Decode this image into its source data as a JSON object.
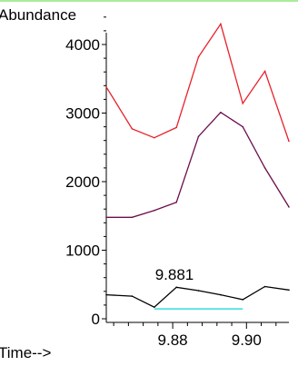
{
  "chart_data": {
    "type": "line",
    "ylabel": "Abundance",
    "xlabel": "Time-->",
    "y_ticks": [
      "0",
      "1000",
      "2000",
      "3000",
      "4000"
    ],
    "x_ticks": [
      "9.88",
      "9.90"
    ],
    "y_tick_values": [
      0,
      1000,
      2000,
      3000,
      4000
    ],
    "x_tick_values": [
      9.88,
      9.9
    ],
    "ylim": [
      -50,
      4500
    ],
    "xlim": [
      9.862,
      9.9115
    ],
    "x": [
      9.862,
      9.869,
      9.875,
      9.881,
      9.887,
      9.893,
      9.899,
      9.905,
      9.9115
    ],
    "series": [
      {
        "color": "#e8202a",
        "values": [
          3380,
          2770,
          2640,
          2790,
          3820,
          4300,
          3140,
          3610,
          2590
        ]
      },
      {
        "color": "#6b0f4b",
        "values": [
          1480,
          1480,
          1580,
          1700,
          2660,
          3010,
          2800,
          2200,
          1630
        ]
      },
      {
        "color": "#000000",
        "values": [
          350,
          330,
          170,
          460,
          410,
          350,
          280,
          470,
          420
        ]
      }
    ],
    "annotation": {
      "text": "9.881",
      "baseline_color": "#33dde0",
      "baseline_from": 9.875,
      "baseline_to": 9.899,
      "baseline_y": 170
    },
    "top_rule_color": "#8ee67a"
  }
}
